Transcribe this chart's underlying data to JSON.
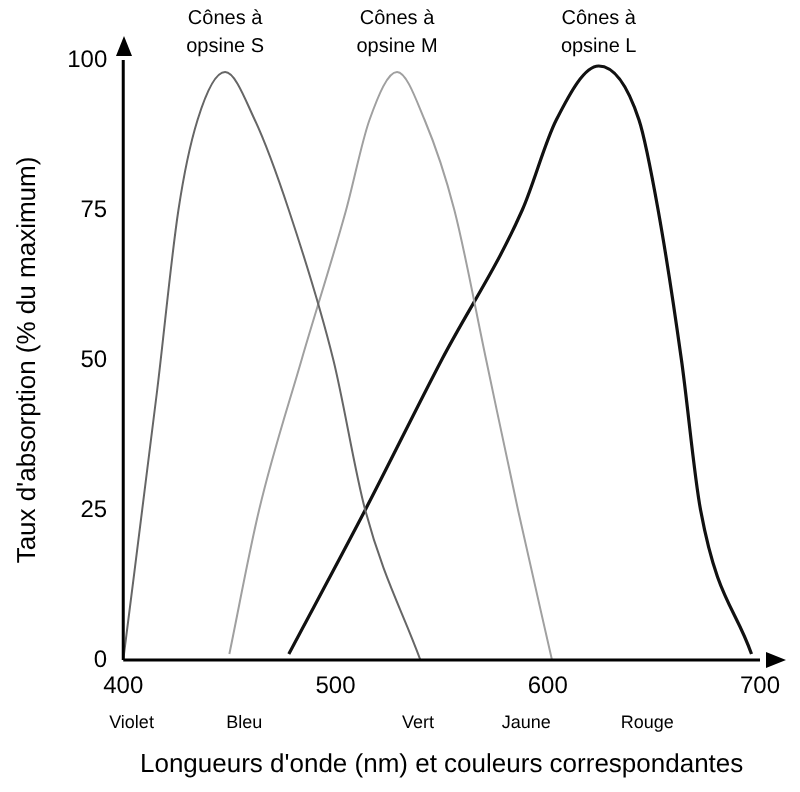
{
  "chart_data": {
    "type": "line",
    "xlabel": "Longueurs d'onde (nm) et couleurs correspondantes",
    "ylabel": "Taux d'absorption (% du maximum)",
    "xlim": [
      400,
      700
    ],
    "xticks": [
      400,
      500,
      600,
      700
    ],
    "ylim": [
      0,
      100
    ],
    "yticks": [
      0,
      25,
      50,
      75,
      100
    ],
    "grid": false,
    "legend": false,
    "marker": "none",
    "line_style": "solid",
    "series": [
      {
        "name": "Cônes à opsine S",
        "color": "#666666",
        "x": [
          400,
          416,
          426,
          435,
          448,
          462,
          478,
          499,
          514,
          540
        ],
        "values": [
          0,
          45,
          75,
          90,
          98,
          90,
          75,
          50,
          25,
          0
        ]
      },
      {
        "name": "Cônes à opsine M",
        "color": "#a0a0a0",
        "x": [
          450,
          464,
          484,
          505,
          516,
          529,
          542,
          556,
          571,
          586,
          602
        ],
        "values": [
          1,
          25,
          50,
          75,
          90,
          98,
          90,
          75,
          50,
          25,
          0
        ]
      },
      {
        "name": "Cônes à opsine L",
        "color": "#111111",
        "x": [
          478,
          514,
          550,
          588,
          604,
          624,
          643,
          652,
          663,
          672,
          696
        ],
        "values": [
          1,
          25,
          50,
          75,
          90,
          99,
          90,
          75,
          50,
          25,
          1
        ]
      }
    ],
    "annotations": [
      "Violet",
      "Bleu",
      "Vert",
      "Jaune",
      "Rouge"
    ]
  }
}
